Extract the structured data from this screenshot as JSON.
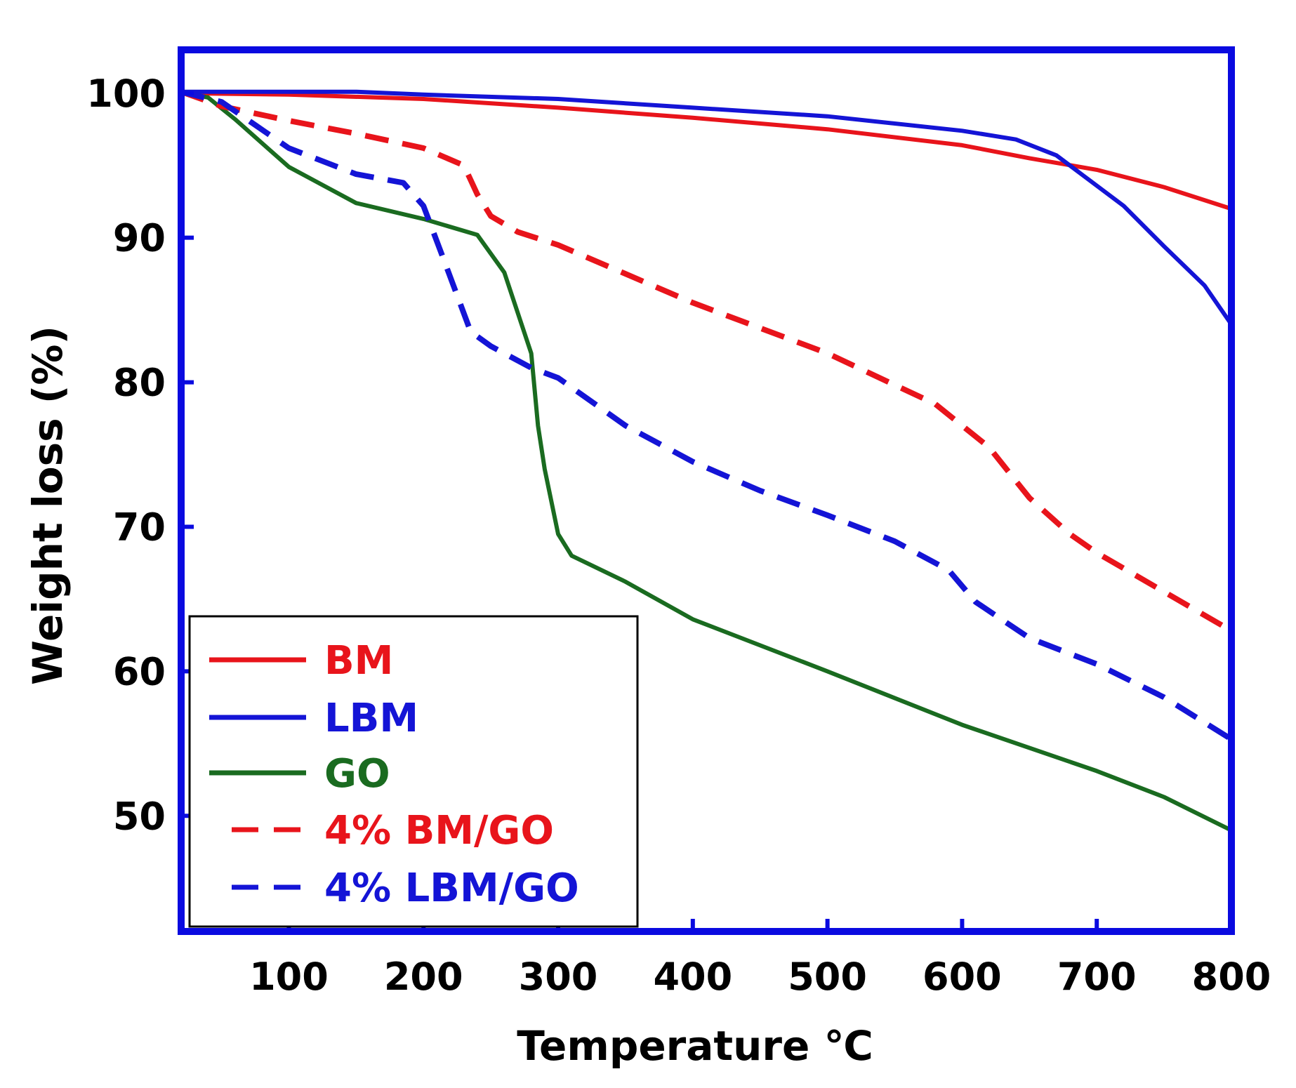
{
  "chart_data": {
    "type": "line",
    "title": "",
    "xlabel": "Temperature ℃",
    "ylabel": "Weight loss (%)",
    "xlim": [
      20,
      800
    ],
    "ylim": [
      42,
      103
    ],
    "xticks": [
      100,
      200,
      300,
      400,
      500,
      600,
      700,
      800
    ],
    "yticks": [
      50,
      60,
      70,
      80,
      90,
      100
    ],
    "grid": false,
    "legend_position": "bottom-left",
    "series": [
      {
        "name": "BM",
        "color": "#e8141b",
        "dash": "solid",
        "x": [
          20,
          100,
          200,
          300,
          400,
          500,
          600,
          650,
          700,
          750,
          800
        ],
        "y": [
          100,
          99.9,
          99.6,
          99.0,
          98.3,
          97.5,
          96.4,
          95.5,
          94.7,
          93.5,
          92.0
        ]
      },
      {
        "name": "LBM",
        "color": "#1414d6",
        "dash": "solid",
        "x": [
          20,
          150,
          200,
          300,
          400,
          500,
          600,
          640,
          670,
          690,
          720,
          750,
          780,
          800
        ],
        "y": [
          100.1,
          100.1,
          99.9,
          99.6,
          99.0,
          98.4,
          97.4,
          96.8,
          95.7,
          94.3,
          92.2,
          89.4,
          86.7,
          84.0
        ]
      },
      {
        "name": "GO",
        "color": "#1a6b20",
        "dash": "solid",
        "x": [
          20,
          40,
          60,
          100,
          150,
          200,
          240,
          260,
          280,
          285,
          290,
          300,
          310,
          350,
          400,
          500,
          600,
          700,
          750,
          800
        ],
        "y": [
          100.1,
          99.7,
          98.2,
          94.9,
          92.4,
          91.3,
          90.2,
          87.6,
          82.0,
          77.0,
          74.0,
          69.5,
          68.0,
          66.2,
          63.6,
          60.0,
          56.3,
          53.1,
          51.3,
          49.0
        ]
      },
      {
        "name": "4% BM/GO",
        "color": "#e8141b",
        "dash": "dashed",
        "x": [
          20,
          50,
          100,
          150,
          200,
          230,
          240,
          250,
          270,
          300,
          350,
          400,
          500,
          580,
          620,
          650,
          680,
          700,
          750,
          800
        ],
        "y": [
          100.1,
          99.1,
          98.1,
          97.2,
          96.2,
          95.0,
          93.0,
          91.5,
          90.4,
          89.5,
          87.5,
          85.5,
          82.0,
          78.5,
          75.5,
          72.0,
          69.5,
          68.2,
          65.5,
          62.8
        ]
      },
      {
        "name": "4% LBM/GO",
        "color": "#1414d6",
        "dash": "dashed",
        "x": [
          20,
          50,
          75,
          100,
          150,
          185,
          200,
          215,
          225,
          235,
          250,
          280,
          300,
          350,
          400,
          450,
          500,
          550,
          590,
          610,
          650,
          700,
          750,
          800
        ],
        "y": [
          100.1,
          99.4,
          97.8,
          96.2,
          94.4,
          93.8,
          92.2,
          88.5,
          86.0,
          83.5,
          82.5,
          81.0,
          80.3,
          77.0,
          74.5,
          72.5,
          70.8,
          69.0,
          67.0,
          64.8,
          62.3,
          60.5,
          58.2,
          55.3
        ]
      }
    ]
  }
}
